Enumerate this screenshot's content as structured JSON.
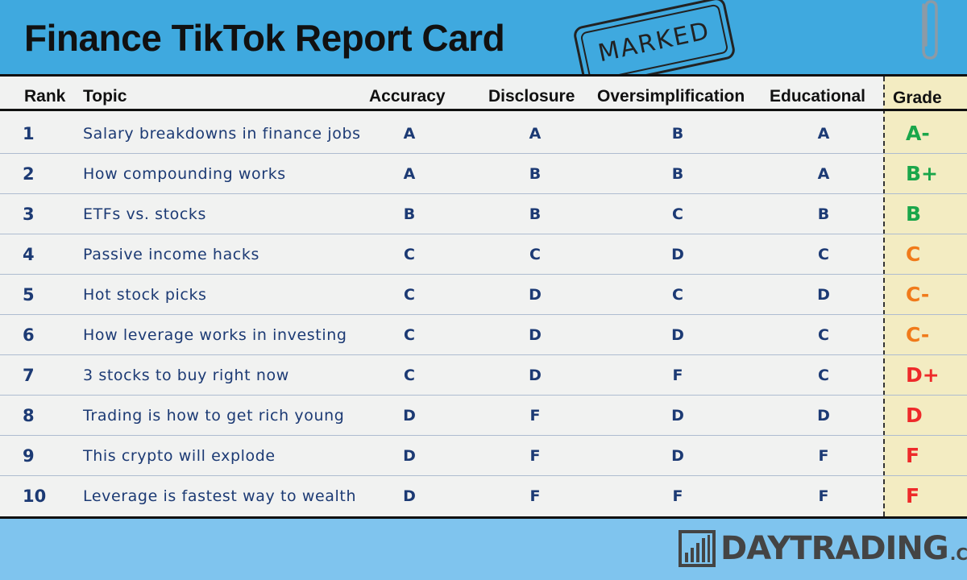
{
  "title": "Finance TikTok Report Card",
  "stamp": "MARKED",
  "columns": {
    "rank": "Rank",
    "topic": "Topic",
    "accuracy": "Accuracy",
    "disclosure": "Disclosure",
    "oversimplification": "Oversimplification",
    "educational": "Educational",
    "grade": "Grade"
  },
  "rows": [
    {
      "rank": "1",
      "topic": "Salary breakdowns in finance jobs",
      "accuracy": "A",
      "disclosure": "A",
      "oversimplification": "B",
      "educational": "A",
      "grade": "A-"
    },
    {
      "rank": "2",
      "topic": "How compounding works",
      "accuracy": "A",
      "disclosure": "B",
      "oversimplification": "B",
      "educational": "A",
      "grade": "B+"
    },
    {
      "rank": "3",
      "topic": "ETFs vs. stocks",
      "accuracy": "B",
      "disclosure": "B",
      "oversimplification": "C",
      "educational": "B",
      "grade": "B"
    },
    {
      "rank": "4",
      "topic": "Passive income hacks",
      "accuracy": "C",
      "disclosure": "C",
      "oversimplification": "D",
      "educational": "C",
      "grade": "C"
    },
    {
      "rank": "5",
      "topic": "Hot stock picks",
      "accuracy": "C",
      "disclosure": "D",
      "oversimplification": "C",
      "educational": "D",
      "grade": "C-"
    },
    {
      "rank": "6",
      "topic": "How leverage works in investing",
      "accuracy": "C",
      "disclosure": "D",
      "oversimplification": "D",
      "educational": "C",
      "grade": "C-"
    },
    {
      "rank": "7",
      "topic": "3 stocks to buy right now",
      "accuracy": "C",
      "disclosure": "D",
      "oversimplification": "F",
      "educational": "C",
      "grade": "D+"
    },
    {
      "rank": "8",
      "topic": "Trading is how to get rich young",
      "accuracy": "D",
      "disclosure": "F",
      "oversimplification": "D",
      "educational": "D",
      "grade": "D"
    },
    {
      "rank": "9",
      "topic": "This crypto will explode",
      "accuracy": "D",
      "disclosure": "F",
      "oversimplification": "D",
      "educational": "F",
      "grade": "F"
    },
    {
      "rank": "10",
      "topic": "Leverage is fastest way to wealth",
      "accuracy": "D",
      "disclosure": "F",
      "oversimplification": "F",
      "educational": "F",
      "grade": "F"
    }
  ],
  "grade_colors": {
    "A": "#1aa64a",
    "B": "#1aa64a",
    "C": "#f07a1a",
    "D": "#ee2a2a",
    "F": "#ee2a2a"
  },
  "brand": {
    "name": "DAYTRADING",
    "suffix": ".COM"
  }
}
